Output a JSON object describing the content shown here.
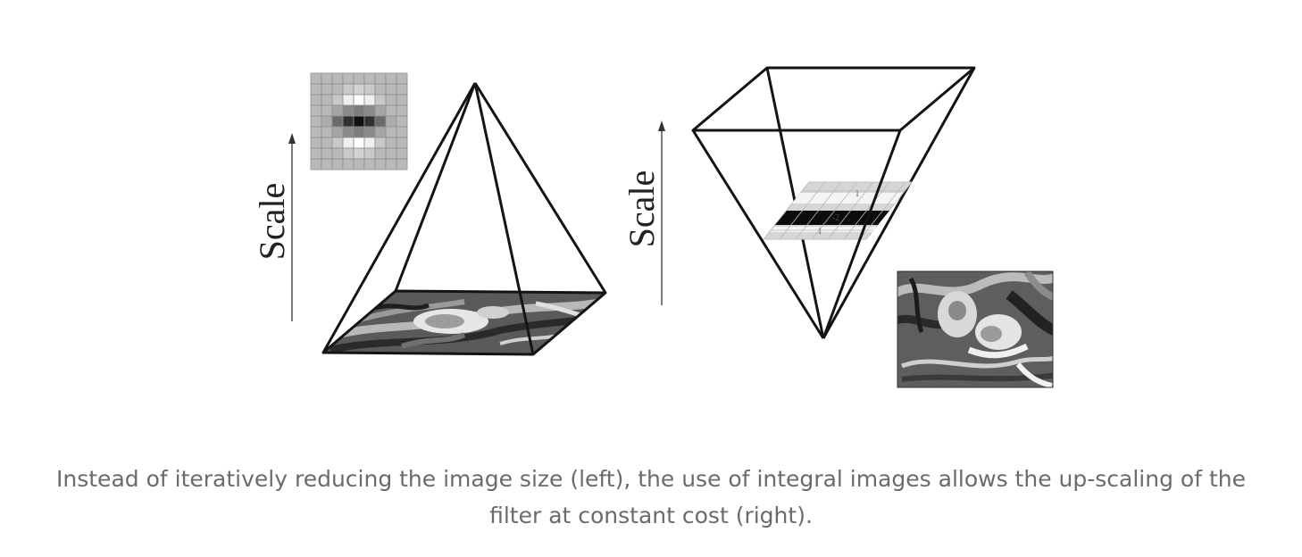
{
  "figure": {
    "left_panel": {
      "axis_label": "Scale",
      "filter_kernel": {
        "cells": [
          [
            "#b9b9b9",
            "#b9b9b9",
            "#b9b9b9",
            "#b9b9b9",
            "#b9b9b9",
            "#b9b9b9",
            "#b9b9b9",
            "#b9b9b9",
            "#b9b9b9"
          ],
          [
            "#b9b9b9",
            "#b9b9b9",
            "#b9b9b9",
            "#c9c9c9",
            "#d2d2d2",
            "#c9c9c9",
            "#b9b9b9",
            "#b9b9b9",
            "#b9b9b9"
          ],
          [
            "#b9b9b9",
            "#b9b9b9",
            "#c8c8c8",
            "#efefef",
            "#ffffff",
            "#efefef",
            "#c8c8c8",
            "#b9b9b9",
            "#b9b9b9"
          ],
          [
            "#b9b9b9",
            "#b9b9b9",
            "#a6a6a6",
            "#8a8a8a",
            "#7c7c7c",
            "#8a8a8a",
            "#a6a6a6",
            "#b9b9b9",
            "#b9b9b9"
          ],
          [
            "#b9b9b9",
            "#acacac",
            "#6a6a6a",
            "#303030",
            "#101010",
            "#303030",
            "#6a6a6a",
            "#acacac",
            "#b9b9b9"
          ],
          [
            "#b9b9b9",
            "#b9b9b9",
            "#a6a6a6",
            "#8a8a8a",
            "#7c7c7c",
            "#8a8a8a",
            "#a6a6a6",
            "#b9b9b9",
            "#b9b9b9"
          ],
          [
            "#b9b9b9",
            "#b9b9b9",
            "#c8c8c8",
            "#efefef",
            "#ffffff",
            "#efefef",
            "#c8c8c8",
            "#b9b9b9",
            "#b9b9b9"
          ],
          [
            "#b9b9b9",
            "#b9b9b9",
            "#b9b9b9",
            "#c9c9c9",
            "#d2d2d2",
            "#c9c9c9",
            "#b9b9b9",
            "#b9b9b9",
            "#b9b9b9"
          ],
          [
            "#b9b9b9",
            "#b9b9b9",
            "#b9b9b9",
            "#b9b9b9",
            "#b9b9b9",
            "#b9b9b9",
            "#b9b9b9",
            "#b9b9b9",
            "#b9b9b9"
          ]
        ]
      }
    },
    "right_panel": {
      "axis_label": "Scale",
      "filter_labels": [
        "1",
        "-2",
        "1"
      ]
    },
    "colors": {
      "line": "#141414",
      "arrow": "#444444",
      "filter_light": "#d6d6d6",
      "filter_white": "#f4f4f4",
      "filter_dark": "#0c0c0c",
      "image_dark": "#3a3a3a",
      "image_mid": "#8c8c8c",
      "image_light": "#dcdcdc"
    }
  },
  "caption": "Instead of iteratively reducing the image size (left), the use of integral images allows the up-scaling of the filter at constant cost (right)."
}
